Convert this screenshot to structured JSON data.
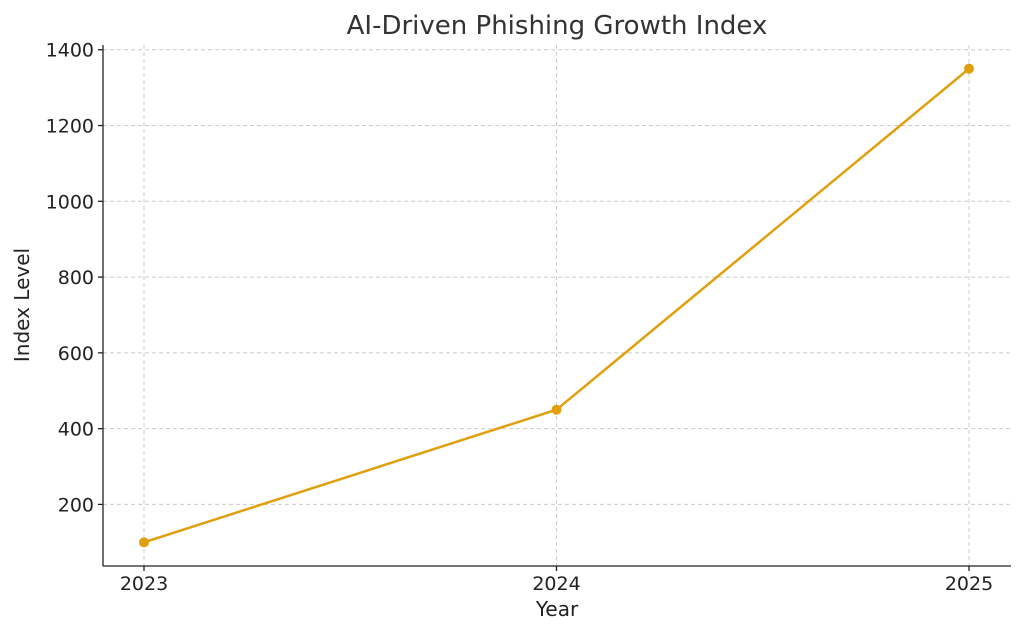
{
  "chart_data": {
    "type": "line",
    "title": "AI-Driven Phishing Growth Index",
    "xlabel": "Year",
    "ylabel": "Index Level",
    "categories": [
      "2023",
      "2024",
      "2025"
    ],
    "series": [
      {
        "values": [
          100,
          450,
          1350
        ]
      }
    ],
    "yticks": [
      200,
      400,
      600,
      800,
      1000,
      1200,
      1400
    ],
    "ylim": [
      37.5,
      1412.5
    ],
    "grid": true,
    "line_color": "#e09f0d"
  }
}
